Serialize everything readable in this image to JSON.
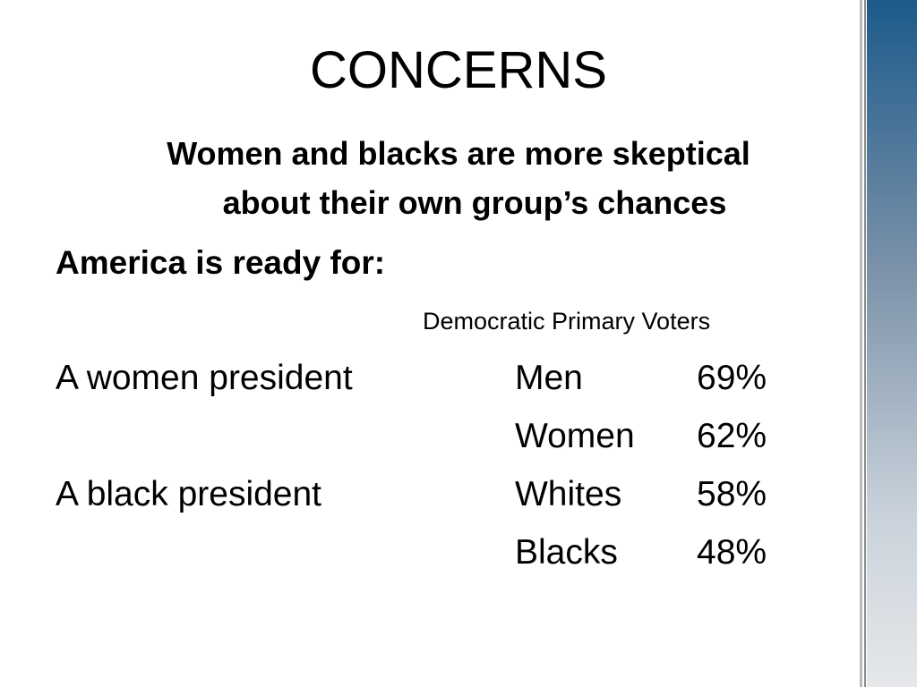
{
  "title": "CONCERNS",
  "subtitle": [
    "Women and blacks are more skeptical",
    "about their own group’s chances"
  ],
  "lead": "America is ready for:",
  "column_header": "Democratic Primary Voters",
  "items": [
    {
      "label": "A women president",
      "groups": [
        {
          "name": "Men",
          "value": "69%"
        },
        {
          "name": "Women",
          "value": "62%"
        }
      ]
    },
    {
      "label": "A black president",
      "groups": [
        {
          "name": "Whites",
          "value": "58%"
        },
        {
          "name": "Blacks",
          "value": "48%"
        }
      ]
    }
  ]
}
